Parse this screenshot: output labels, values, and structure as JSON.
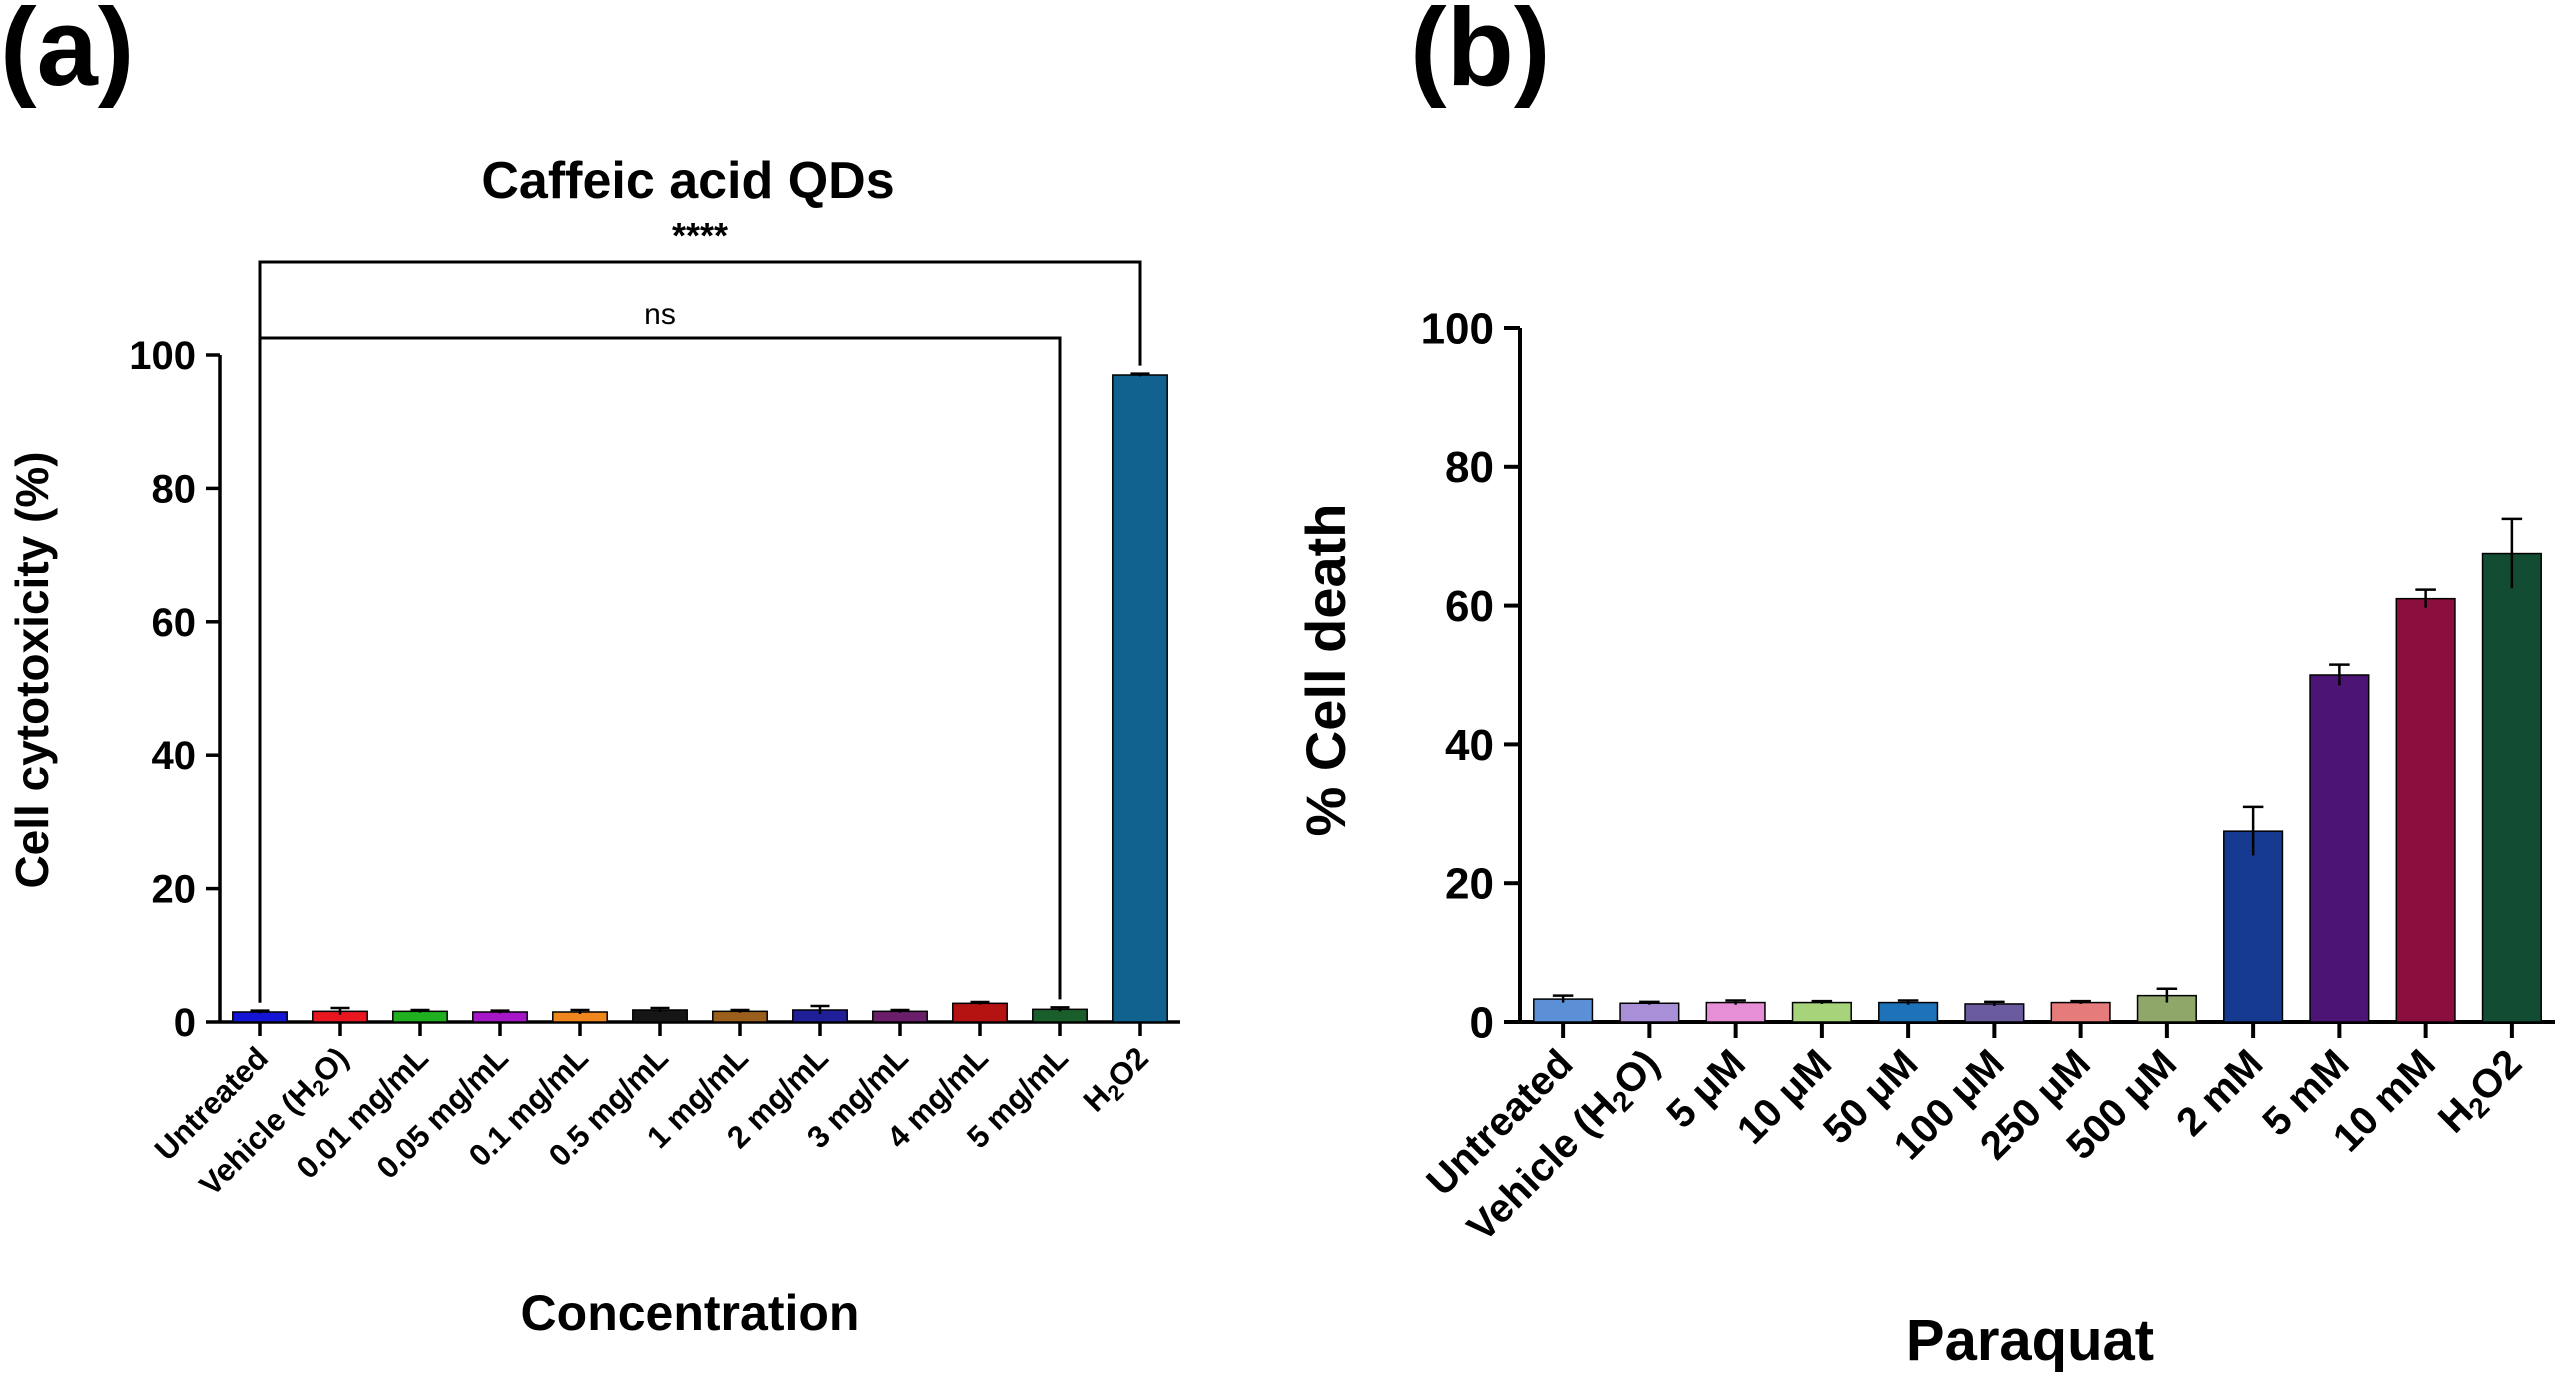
{
  "panels": {
    "a": {
      "label": "(a)"
    },
    "b": {
      "label": "(b)"
    }
  },
  "chart_data": [
    {
      "type": "bar",
      "title": "Caffeic acid QDs",
      "xlabel": "Concentration",
      "ylabel": "Cell cytotoxicity (%)",
      "ylim": [
        0,
        100
      ],
      "yticks": [
        "0",
        "20",
        "40",
        "60",
        "80",
        "100"
      ],
      "categories": [
        "Untreated",
        "Vehicle (H2O)",
        "0.01 mg/mL",
        "0.05 mg/mL",
        "0.1 mg/mL",
        "0.5 mg/mL",
        "1 mg/mL",
        "2 mg/mL",
        "3 mg/mL",
        "4 mg/mL",
        "5 mg/mL",
        "H2O2"
      ],
      "values": [
        1.5,
        1.6,
        1.6,
        1.5,
        1.5,
        1.8,
        1.6,
        1.8,
        1.6,
        2.8,
        1.9,
        97.0
      ],
      "errors": [
        0.2,
        0.5,
        0.2,
        0.2,
        0.3,
        0.3,
        0.2,
        0.6,
        0.2,
        0.2,
        0.3,
        0.2
      ],
      "colors": [
        "#1515d6",
        "#e8171f",
        "#1faf1f",
        "#a517c7",
        "#f0861e",
        "#161616",
        "#9a5f1c",
        "#1f1f98",
        "#6b1f6b",
        "#b51212",
        "#1a5e2b",
        "#11628f"
      ],
      "significance": [
        {
          "text": "****",
          "from": "Untreated",
          "to": "H2O2"
        },
        {
          "text": "ns",
          "from": "Untreated",
          "to": "5 mg/mL"
        }
      ],
      "grid": false,
      "legend": "none"
    },
    {
      "type": "bar",
      "title": "",
      "xlabel": "Paraquat",
      "ylabel": "% Cell death",
      "ylim": [
        0,
        100
      ],
      "yticks": [
        "0",
        "20",
        "40",
        "60",
        "80",
        "100"
      ],
      "categories": [
        "Untreated",
        "Vehicle (H2O)",
        "5 μM",
        "10 μM",
        "50 μM",
        "100 μM",
        "250 μM",
        "500 μM",
        "2 mM",
        "5 mM",
        "10 mM",
        "H2O2"
      ],
      "values": [
        3.3,
        2.7,
        2.8,
        2.8,
        2.8,
        2.6,
        2.8,
        3.8,
        27.5,
        50.0,
        61.0,
        67.5
      ],
      "errors": [
        0.5,
        0.2,
        0.3,
        0.2,
        0.3,
        0.3,
        0.2,
        1.0,
        3.5,
        1.5,
        1.3,
        5.0
      ],
      "colors": [
        "#5b8fd6",
        "#a98fd8",
        "#e68fd6",
        "#a7d47a",
        "#1e73b8",
        "#6a5a9e",
        "#e67b7b",
        "#8fa86a",
        "#163a8f",
        "#4b1475",
        "#8a0f3f",
        "#124d33"
      ],
      "grid": false,
      "legend": "none"
    }
  ]
}
